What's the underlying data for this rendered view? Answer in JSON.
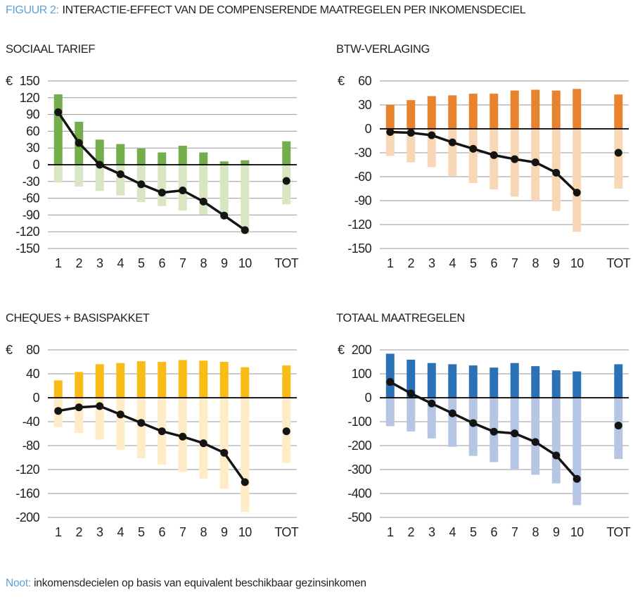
{
  "header": {
    "label": "FIGUUR 2:",
    "title": "INTERACTIE-EFFECT VAN DE COMPENSERENDE MAATREGELEN PER INKOMENSDECIEL"
  },
  "note": {
    "label": "Noot:",
    "text": "inkomensdecielen op basis van equivalent beschikbaar gezinsinkomen"
  },
  "colors": {
    "accent_blue": "#5ba3d9",
    "text": "#231f20",
    "gridline": "#9a9a9a",
    "axis": "#000000",
    "marker": "#141414"
  },
  "chart_data": [
    {
      "type": "bar",
      "subtype": "positive-negative-bars-with-net-dot-line",
      "title": "SOCIAAL TARIEF",
      "currency": "€",
      "categories": [
        "1",
        "2",
        "3",
        "4",
        "5",
        "6",
        "7",
        "8",
        "9",
        "10",
        "TOT"
      ],
      "ylim": [
        -150,
        150
      ],
      "ytick_step": 30,
      "grid": true,
      "legend": "none",
      "bar_colors": {
        "positive": "#74ad4c",
        "negative": "#d9e6c4"
      },
      "series": [
        {
          "name": "positive",
          "values": [
            126,
            77,
            45,
            37,
            29,
            22,
            34,
            22,
            6,
            8,
            42
          ]
        },
        {
          "name": "negative",
          "values": [
            -32,
            -39,
            -47,
            -55,
            -67,
            -74,
            -82,
            -89,
            -98,
            -124,
            -71
          ]
        },
        {
          "name": "net",
          "style": "dot-line",
          "values": [
            94,
            39,
            0,
            -17,
            -35,
            -50,
            -46,
            -66,
            -91,
            -117,
            -29
          ]
        }
      ]
    },
    {
      "type": "bar",
      "subtype": "positive-negative-bars-with-net-dot-line",
      "title": "BTW-VERLAGING",
      "currency": "€",
      "categories": [
        "1",
        "2",
        "3",
        "4",
        "5",
        "6",
        "7",
        "8",
        "9",
        "10",
        "TOT"
      ],
      "ylim": [
        -150,
        60
      ],
      "ytick_step": 30,
      "grid": true,
      "legend": "none",
      "bar_colors": {
        "positive": "#e8822d",
        "negative": "#f8d7b6"
      },
      "series": [
        {
          "name": "positive",
          "values": [
            30,
            36,
            41,
            42,
            44,
            44,
            48,
            49,
            48,
            50,
            43
          ]
        },
        {
          "name": "negative",
          "values": [
            -34,
            -42,
            -48,
            -59,
            -68,
            -76,
            -85,
            -90,
            -103,
            -129,
            -75
          ]
        },
        {
          "name": "net",
          "style": "dot-line",
          "values": [
            -4,
            -5,
            -8,
            -17,
            -25,
            -33,
            -38,
            -42,
            -55,
            -80,
            -30
          ]
        }
      ]
    },
    {
      "type": "bar",
      "subtype": "positive-negative-bars-with-net-dot-line",
      "title": "CHEQUES + BASISPAKKET",
      "currency": "€",
      "categories": [
        "1",
        "2",
        "3",
        "4",
        "5",
        "6",
        "7",
        "8",
        "9",
        "10",
        "TOT"
      ],
      "ylim": [
        -200,
        80
      ],
      "ytick_step": 40,
      "grid": true,
      "legend": "none",
      "bar_colors": {
        "positive": "#f9bb16",
        "negative": "#fdecc5"
      },
      "series": [
        {
          "name": "positive",
          "values": [
            29,
            43,
            56,
            58,
            61,
            60,
            63,
            62,
            60,
            51,
            54
          ]
        },
        {
          "name": "negative",
          "values": [
            -49,
            -59,
            -70,
            -87,
            -101,
            -112,
            -124,
            -135,
            -152,
            -191,
            -109
          ]
        },
        {
          "name": "net",
          "style": "dot-line",
          "values": [
            -22,
            -16,
            -14,
            -28,
            -42,
            -56,
            -65,
            -76,
            -92,
            -141,
            -56
          ]
        }
      ]
    },
    {
      "type": "bar",
      "subtype": "positive-negative-bars-with-net-dot-line",
      "title": "TOTAAL MAATREGELEN",
      "currency": "€",
      "categories": [
        "1",
        "2",
        "3",
        "4",
        "5",
        "6",
        "7",
        "8",
        "9",
        "10",
        "TOT"
      ],
      "ylim": [
        -500,
        200
      ],
      "ytick_step": 100,
      "grid": true,
      "legend": "none",
      "bar_colors": {
        "positive": "#2a72b5",
        "negative": "#b7c5e5"
      },
      "series": [
        {
          "name": "positive",
          "values": [
            184,
            159,
            145,
            140,
            135,
            126,
            145,
            132,
            115,
            110,
            140
          ]
        },
        {
          "name": "negative",
          "values": [
            -119,
            -141,
            -170,
            -205,
            -243,
            -269,
            -297,
            -322,
            -358,
            -449,
            -256
          ]
        },
        {
          "name": "net",
          "style": "dot-line",
          "values": [
            66,
            18,
            -24,
            -65,
            -106,
            -142,
            -149,
            -185,
            -241,
            -339,
            -116
          ]
        }
      ]
    }
  ]
}
